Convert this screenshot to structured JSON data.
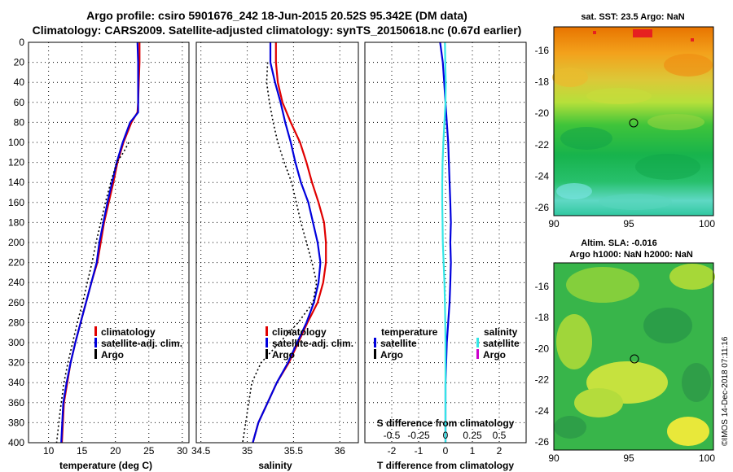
{
  "figure": {
    "title_line1": "Argo profile: csiro 5901676_242 18-Jun-2015 20.52S 95.342E (DM data)",
    "title_line2": "Climatology: CARS2009. Satellite-adjusted climatology: synTS_20150618.nc (0.67d earlier)",
    "credit": "©IMOS 14-Dec-2018 07:11:16"
  },
  "colors": {
    "climatology": "#e00000",
    "satellite": "#0000dd",
    "argo": "#000000",
    "salinity_sat": "#33e6e6",
    "salinity_argo": "#cc00cc"
  },
  "chart_data": [
    {
      "id": "temperature",
      "type": "line",
      "xlabel": "temperature (deg C)",
      "ylabel": "",
      "xlim": [
        7,
        31
      ],
      "ylim": [
        400,
        0
      ],
      "xticks": [
        10,
        15,
        20,
        25,
        30
      ],
      "yticks": [
        0,
        20,
        40,
        60,
        80,
        100,
        120,
        140,
        160,
        180,
        200,
        220,
        240,
        260,
        280,
        300,
        320,
        340,
        360,
        380,
        400
      ],
      "grid": true,
      "legend": [
        "climatology",
        "satellite-adj. clim.",
        "Argo"
      ],
      "series": [
        {
          "name": "climatology",
          "color": "#e00000",
          "dash": "",
          "x": [
            23.6,
            23.6,
            23.5,
            23.4,
            23.3,
            22.4,
            21.2,
            20.3,
            19.7,
            19.0,
            18.3,
            17.8,
            17.3,
            16.4,
            15.6,
            14.8,
            14.0,
            13.3,
            12.8,
            12.3,
            12.0
          ],
          "depth": [
            0,
            20,
            40,
            60,
            70,
            80,
            100,
            120,
            140,
            160,
            180,
            200,
            220,
            240,
            260,
            280,
            300,
            320,
            340,
            360,
            400
          ]
        },
        {
          "name": "satellite-adj. clim.",
          "color": "#0000dd",
          "dash": "",
          "x": [
            23.3,
            23.4,
            23.4,
            23.4,
            23.4,
            22.2,
            21.1,
            20.2,
            19.5,
            18.8,
            18.2,
            17.6,
            17.2,
            16.4,
            15.6,
            14.8,
            14.0,
            13.3,
            12.7,
            12.2,
            11.9
          ],
          "depth": [
            0,
            20,
            40,
            60,
            70,
            80,
            100,
            120,
            140,
            160,
            180,
            200,
            220,
            240,
            260,
            280,
            300,
            320,
            340,
            360,
            400
          ]
        },
        {
          "name": "Argo",
          "color": "#000000",
          "dash": "2 3",
          "x": [
            22.0,
            21.2,
            20.2,
            19.3,
            18.5,
            17.8,
            17.1,
            16.5,
            15.8,
            15.1,
            14.3,
            13.6,
            12.9,
            12.3,
            11.7,
            11.2
          ],
          "depth": [
            100,
            110,
            120,
            140,
            160,
            180,
            200,
            220,
            240,
            260,
            280,
            300,
            320,
            340,
            370,
            400
          ]
        }
      ]
    },
    {
      "id": "salinity",
      "type": "line",
      "xlabel": "salinity",
      "ylabel": "",
      "xlim": [
        34.45,
        36.2
      ],
      "ylim": [
        400,
        0
      ],
      "xticks": [
        34.5,
        35,
        35.5,
        36
      ],
      "xticklabels": [
        "34.5",
        "35",
        "35.5",
        "36"
      ],
      "grid": true,
      "legend": [
        "climatology",
        "satellite-adj. clim.",
        "Argo"
      ],
      "series": [
        {
          "name": "climatology",
          "color": "#e00000",
          "dash": "",
          "x": [
            35.31,
            35.31,
            35.33,
            35.38,
            35.47,
            35.57,
            35.64,
            35.7,
            35.77,
            35.83,
            35.85,
            35.85,
            35.82,
            35.76,
            35.65,
            35.55,
            35.45,
            35.32,
            35.22,
            35.12,
            35.06
          ],
          "depth": [
            0,
            20,
            40,
            60,
            80,
            100,
            120,
            140,
            160,
            180,
            200,
            220,
            240,
            260,
            280,
            300,
            320,
            340,
            360,
            380,
            400
          ]
        },
        {
          "name": "satellite-adj. clim.",
          "color": "#0000dd",
          "dash": "",
          "x": [
            35.25,
            35.25,
            35.3,
            35.36,
            35.41,
            35.47,
            35.52,
            35.58,
            35.66,
            35.71,
            35.76,
            35.79,
            35.77,
            35.72,
            35.64,
            35.54,
            35.44,
            35.32,
            35.22,
            35.12,
            35.06
          ],
          "depth": [
            0,
            20,
            40,
            60,
            80,
            100,
            120,
            140,
            160,
            180,
            200,
            220,
            240,
            260,
            280,
            300,
            320,
            340,
            360,
            380,
            400
          ]
        },
        {
          "name": "Argo",
          "color": "#000000",
          "dash": "2 3",
          "x": [
            35.22,
            35.21,
            35.24,
            35.28,
            35.33,
            35.4,
            35.48,
            35.53,
            35.58,
            35.64,
            35.7,
            35.75,
            35.71,
            35.55,
            35.35,
            35.15,
            35.05,
            35.0,
            34.95
          ],
          "depth": [
            20,
            40,
            60,
            80,
            100,
            120,
            140,
            160,
            180,
            200,
            220,
            240,
            260,
            280,
            300,
            320,
            340,
            370,
            400
          ]
        }
      ]
    },
    {
      "id": "difference",
      "type": "line",
      "xlabel": "T difference from climatology",
      "ylabel": "",
      "xlim": [
        -3,
        3
      ],
      "ylim": [
        400,
        0
      ],
      "xticks": [
        -2,
        -1,
        0,
        1,
        2
      ],
      "xticklabels": [
        "-2",
        "-1",
        "0",
        "1",
        "2"
      ],
      "top_scale_label": "S difference from climatology",
      "top_scale_ticks": [
        -0.5,
        -0.25,
        0,
        0.25,
        0.5
      ],
      "top_scale_ticklabels": [
        "-0.5",
        "-0.25",
        "0",
        "0.25",
        "0.5"
      ],
      "grid": true,
      "legend_left_title": "temperature",
      "legend_right_title": "salinity",
      "legend_left": [
        "satellite",
        "Argo"
      ],
      "legend_right": [
        "satellite",
        "Argo"
      ],
      "series": [
        {
          "name": "T satellite",
          "color": "#0000dd",
          "dash": "",
          "x": [
            -0.2,
            -0.1,
            -0.05,
            0.0,
            0.05,
            0.1,
            0.15,
            0.18,
            0.2,
            0.18,
            0.2,
            0.18,
            0.15,
            0.1,
            0.05,
            0.0,
            0.0
          ],
          "depth": [
            0,
            20,
            40,
            60,
            80,
            100,
            140,
            160,
            180,
            200,
            220,
            240,
            260,
            280,
            300,
            340,
            400
          ]
        },
        {
          "name": "S satellite",
          "color": "#33e6e6",
          "dash": "",
          "x": [
            -0.02,
            -0.01,
            0.01,
            0.0,
            -0.04,
            -0.08,
            -0.11,
            -0.12,
            -0.12,
            -0.11,
            -0.1,
            -0.07,
            -0.04,
            -0.02,
            -0.01,
            0.0,
            0.0,
            0.0
          ],
          "depth": [
            0,
            20,
            40,
            60,
            80,
            100,
            120,
            140,
            160,
            180,
            200,
            220,
            240,
            260,
            280,
            300,
            340,
            400
          ]
        }
      ]
    }
  ],
  "maps": {
    "sst": {
      "title": "sat. SST: 23.5 Argo: NaN",
      "yticks": [
        "-16",
        "-18",
        "-20",
        "-22",
        "-24",
        "-26"
      ],
      "xticks": [
        "90",
        "95",
        "100"
      ]
    },
    "sla": {
      "title_line1": "Altim. SLA: -0.016",
      "title_line2": "Argo h1000: NaN h2000: NaN",
      "yticks": [
        "-16",
        "-18",
        "-20",
        "-22",
        "-24",
        "-26"
      ],
      "xticks": [
        "90",
        "95",
        "100"
      ]
    }
  }
}
